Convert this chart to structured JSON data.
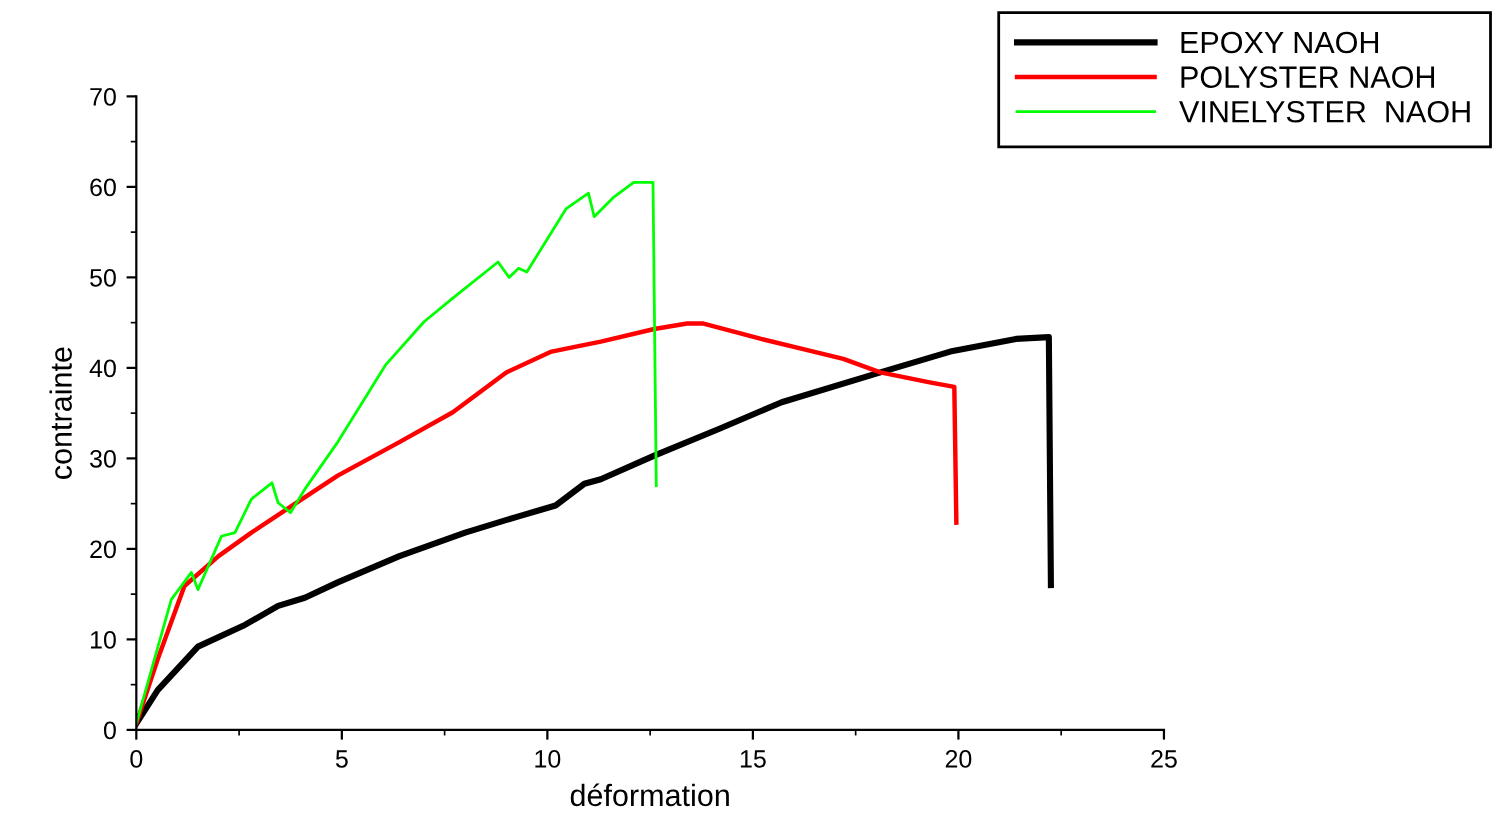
{
  "chart_data": {
    "type": "line",
    "xlabel": "déformation",
    "ylabel": "contrainte",
    "xlim": [
      0,
      25
    ],
    "xticks": [
      0,
      5,
      10,
      15,
      20,
      25
    ],
    "ylim": [
      0,
      70
    ],
    "yticks": [
      0,
      10,
      20,
      30,
      40,
      50,
      60,
      70
    ],
    "grid": false,
    "legend": "top right",
    "marker": "none",
    "line_style": "solid",
    "series": [
      {
        "name": "EPOXY NAOH",
        "color": "#000000",
        "x": [
          0,
          0.52,
          1.5,
          2.6,
          3.45,
          4.1,
          4.9,
          6.4,
          8.0,
          9.3,
          10.2,
          10.9,
          11.3,
          12.6,
          14.2,
          15.7,
          18.1,
          19.8,
          21.4,
          22.2,
          22.25
        ],
        "values": [
          0.7,
          4.4,
          9.2,
          11.5,
          13.7,
          14.6,
          16.3,
          19.2,
          21.8,
          23.6,
          24.8,
          27.2,
          27.7,
          30.3,
          33.3,
          36.2,
          39.5,
          41.8,
          43.2,
          43.4,
          16.0
        ]
      },
      {
        "name": "POLYSTER NAOH",
        "color": "#ff0000",
        "x": [
          0,
          0.52,
          1.17,
          2.0,
          2.8,
          3.8,
          4.9,
          6.4,
          7.7,
          9.0,
          10.1,
          11.3,
          12.6,
          13.4,
          13.8,
          15.2,
          16.2,
          17.2,
          18.1,
          19.3,
          19.9,
          19.95
        ],
        "values": [
          0.7,
          7.8,
          15.9,
          19.2,
          21.8,
          24.8,
          28.1,
          31.8,
          35.1,
          39.5,
          41.8,
          42.9,
          44.3,
          44.9,
          44.9,
          43.2,
          42.1,
          41.0,
          39.5,
          38.4,
          37.9,
          22.9
        ]
      },
      {
        "name": "VINELYSTER  NAOH",
        "color": "#00ff00",
        "x": [
          0,
          0.85,
          1.34,
          1.5,
          2.07,
          2.4,
          2.8,
          3.3,
          3.45,
          3.75,
          4.1,
          4.9,
          6.06,
          7.0,
          7.7,
          8.8,
          9.07,
          9.3,
          9.5,
          10.46,
          11.0,
          11.14,
          11.6,
          12.1,
          12.57,
          12.65
        ],
        "values": [
          0.7,
          14.4,
          17.4,
          15.5,
          21.4,
          21.8,
          25.5,
          27.3,
          25.1,
          24.0,
          26.6,
          31.8,
          40.3,
          45.1,
          47.7,
          51.7,
          50.0,
          51.0,
          50.6,
          57.6,
          59.3,
          56.7,
          58.8,
          60.5,
          60.5,
          27.0
        ]
      }
    ]
  }
}
